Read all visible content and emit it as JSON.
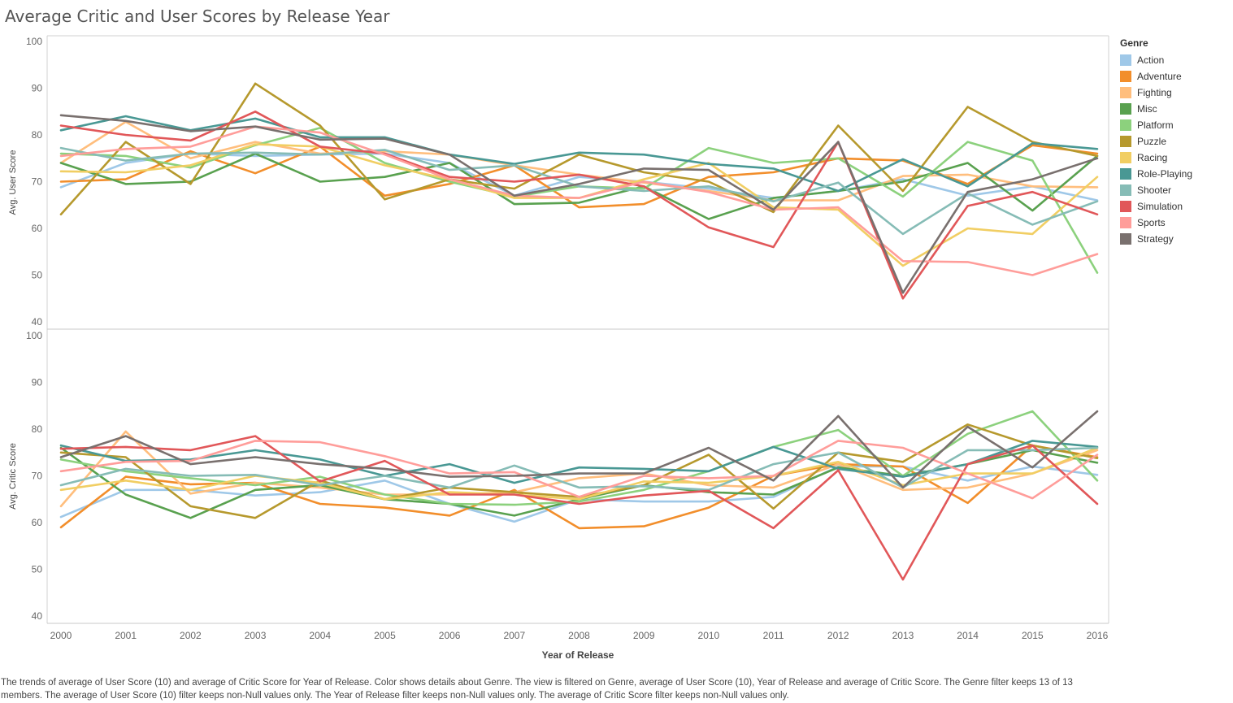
{
  "page": {
    "title": "Average Critic and User Scores by Release Year",
    "caption": "The trends of average of User Score (10) and average of Critic Score for Year of Release.  Color shows details about Genre. The view is filtered on Genre, average of User Score (10), Year of Release and average of Critic Score. The Genre filter keeps 13 of 13 members. The average of User Score (10) filter keeps non-Null values only. The Year of Release filter keeps non-Null values only. The average of Critic Score filter keeps non-Null values only."
  },
  "legend": {
    "title": "Genre",
    "items": [
      {
        "name": "Action",
        "color": "#9fc8e8"
      },
      {
        "name": "Adventure",
        "color": "#f28e2b"
      },
      {
        "name": "Fighting",
        "color": "#ffbe7d"
      },
      {
        "name": "Misc",
        "color": "#59a14f"
      },
      {
        "name": "Platform",
        "color": "#8cd17d"
      },
      {
        "name": "Puzzle",
        "color": "#b6992d"
      },
      {
        "name": "Racing",
        "color": "#f1ce63"
      },
      {
        "name": "Role-Playing",
        "color": "#499894"
      },
      {
        "name": "Shooter",
        "color": "#86bcb6"
      },
      {
        "name": "Simulation",
        "color": "#e15759"
      },
      {
        "name": "Sports",
        "color": "#ff9d9a"
      },
      {
        "name": "Strategy",
        "color": "#79706e"
      }
    ]
  },
  "chart_data": {
    "type": "line",
    "xlabel": "Year of Release",
    "x": [
      2000,
      2001,
      2002,
      2003,
      2004,
      2005,
      2006,
      2007,
      2008,
      2009,
      2010,
      2011,
      2012,
      2013,
      2014,
      2015,
      2016
    ],
    "panels": [
      {
        "ylabel": "Avg. User Score",
        "ylim": [
          40,
          100
        ],
        "yticks": [
          40,
          50,
          60,
          70,
          80,
          90,
          100
        ],
        "series": [
          {
            "name": "Action",
            "values": [
              68.8,
              74.0,
              76.0,
              75.5,
              75.8,
              76.0,
              74.0,
              67.0,
              71.0,
              70.0,
              68.5,
              66.5,
              68.0,
              70.5,
              67.0,
              69.0,
              66.0
            ]
          },
          {
            "name": "Adventure",
            "values": [
              70.0,
              70.5,
              76.5,
              71.8,
              77.5,
              67.0,
              69.5,
              73.5,
              64.5,
              65.2,
              71.0,
              72.0,
              75.0,
              74.5,
              69.5,
              77.8,
              76.0
            ]
          },
          {
            "name": "Fighting",
            "values": [
              74.0,
              82.8,
              75.0,
              78.5,
              76.0,
              76.5,
              75.8,
              73.5,
              71.5,
              69.8,
              68.0,
              66.0,
              66.0,
              71.2,
              71.5,
              69.0,
              68.8
            ]
          },
          {
            "name": "Misc",
            "values": [
              74.0,
              69.5,
              70.0,
              76.0,
              70.0,
              71.0,
              74.0,
              65.2,
              65.5,
              69.0,
              62.0,
              66.5,
              68.0,
              70.0,
              74.0,
              63.8,
              75.5
            ]
          },
          {
            "name": "Platform",
            "values": [
              76.0,
              75.5,
              73.0,
              77.8,
              81.5,
              74.0,
              70.0,
              66.8,
              69.0,
              68.5,
              77.2,
              74.0,
              75.0,
              66.8,
              78.5,
              74.5,
              50.5
            ]
          },
          {
            "name": "Puzzle",
            "values": [
              63.0,
              78.5,
              69.5,
              91.0,
              82.0,
              66.2,
              70.5,
              68.5,
              75.8,
              72.0,
              70.0,
              63.5,
              82.0,
              68.0,
              86.0,
              78.5,
              75.5
            ]
          },
          {
            "name": "Racing",
            "values": [
              72.2,
              72.0,
              73.5,
              78.0,
              77.5,
              73.5,
              70.5,
              66.5,
              66.5,
              70.5,
              74.0,
              64.5,
              64.0,
              52.0,
              60.0,
              58.8,
              71.0
            ]
          },
          {
            "name": "Role-Playing",
            "values": [
              81.0,
              84.0,
              81.0,
              83.5,
              79.5,
              79.5,
              75.8,
              73.8,
              76.2,
              75.8,
              73.8,
              72.8,
              68.0,
              74.8,
              69.0,
              78.2,
              77.0
            ]
          },
          {
            "name": "Shooter",
            "values": [
              77.2,
              74.5,
              76.0,
              76.2,
              75.8,
              76.8,
              72.5,
              73.5,
              69.0,
              68.0,
              69.0,
              65.8,
              69.8,
              58.8,
              67.5,
              60.8,
              65.8
            ]
          },
          {
            "name": "Simulation",
            "values": [
              82.0,
              80.0,
              78.8,
              85.0,
              77.5,
              76.0,
              71.0,
              70.0,
              71.5,
              69.0,
              60.2,
              56.0,
              78.5,
              45.0,
              64.8,
              67.8,
              63.0
            ]
          },
          {
            "name": "Sports",
            "values": [
              75.5,
              77.0,
              77.5,
              81.8,
              80.5,
              75.8,
              70.5,
              67.0,
              66.5,
              70.0,
              67.8,
              64.0,
              64.5,
              53.0,
              52.8,
              50.0,
              54.5
            ]
          },
          {
            "name": "Strategy",
            "values": [
              84.2,
              83.0,
              80.8,
              81.8,
              79.0,
              79.2,
              75.8,
              67.0,
              69.5,
              72.8,
              72.5,
              64.0,
              78.5,
              46.2,
              67.8,
              70.5,
              75.0
            ]
          }
        ]
      },
      {
        "ylabel": "Avg. Critic Score",
        "ylim": [
          40,
          100
        ],
        "yticks": [
          40,
          50,
          60,
          70,
          80,
          90,
          100
        ],
        "series": [
          {
            "name": "Action",
            "values": [
              61.2,
              67.0,
              67.0,
              65.8,
              66.5,
              69.0,
              64.0,
              60.2,
              65.0,
              64.5,
              64.5,
              65.5,
              72.0,
              72.0,
              69.0,
              72.0,
              70.2
            ]
          },
          {
            "name": "Adventure",
            "values": [
              59.0,
              69.8,
              68.2,
              68.5,
              64.0,
              63.2,
              61.5,
              67.0,
              58.8,
              59.2,
              63.2,
              70.0,
              72.5,
              72.0,
              64.2,
              76.5,
              74.0
            ]
          },
          {
            "name": "Fighting",
            "values": [
              63.5,
              79.5,
              66.2,
              68.5,
              67.5,
              66.0,
              66.0,
              66.5,
              69.5,
              70.5,
              68.0,
              67.5,
              72.5,
              67.0,
              67.5,
              70.5,
              75.5
            ]
          },
          {
            "name": "Misc",
            "values": [
              76.0,
              66.0,
              61.0,
              67.0,
              68.0,
              65.0,
              64.0,
              61.5,
              65.0,
              68.0,
              66.5,
              66.0,
              71.8,
              70.0,
              72.5,
              75.5,
              72.8
            ]
          },
          {
            "name": "Platform",
            "values": [
              73.5,
              71.0,
              69.5,
              68.0,
              69.8,
              66.0,
              64.0,
              63.8,
              64.5,
              67.0,
              71.0,
              76.2,
              79.8,
              70.0,
              79.0,
              83.8,
              69.0
            ]
          },
          {
            "name": "Puzzle",
            "values": [
              75.0,
              74.0,
              63.5,
              61.0,
              69.0,
              65.0,
              67.5,
              66.5,
              65.5,
              68.0,
              74.5,
              63.0,
              75.0,
              73.0,
              81.0,
              76.5,
              73.8
            ]
          },
          {
            "name": "Racing",
            "values": [
              67.0,
              69.0,
              67.0,
              70.0,
              68.5,
              65.0,
              66.5,
              66.0,
              65.0,
              68.8,
              68.5,
              70.0,
              73.0,
              68.0,
              70.5,
              70.5,
              76.0
            ]
          },
          {
            "name": "Role-Playing",
            "values": [
              76.5,
              73.2,
              73.5,
              75.5,
              73.5,
              70.0,
              72.5,
              68.5,
              71.8,
              71.5,
              71.0,
              76.2,
              71.5,
              69.8,
              72.5,
              77.5,
              76.2
            ]
          },
          {
            "name": "Shooter",
            "values": [
              68.0,
              71.5,
              70.0,
              70.2,
              68.0,
              70.0,
              67.5,
              72.2,
              67.5,
              67.8,
              67.0,
              72.5,
              75.0,
              67.5,
              75.5,
              75.5,
              76.0
            ]
          },
          {
            "name": "Simulation",
            "values": [
              75.8,
              76.2,
              75.5,
              78.5,
              68.8,
              73.2,
              66.0,
              66.0,
              64.0,
              65.8,
              66.8,
              58.8,
              71.2,
              47.8,
              72.5,
              76.5,
              64.0
            ]
          },
          {
            "name": "Sports",
            "values": [
              71.0,
              73.0,
              73.2,
              77.5,
              77.2,
              74.2,
              70.5,
              70.8,
              65.5,
              70.0,
              69.5,
              70.0,
              77.5,
              76.0,
              70.5,
              65.2,
              74.5
            ]
          },
          {
            "name": "Strategy",
            "values": [
              74.0,
              78.5,
              72.5,
              74.0,
              72.5,
              71.5,
              69.8,
              70.0,
              70.5,
              70.5,
              76.0,
              69.0,
              82.8,
              67.5,
              80.5,
              71.8,
              83.8
            ]
          }
        ]
      }
    ]
  }
}
